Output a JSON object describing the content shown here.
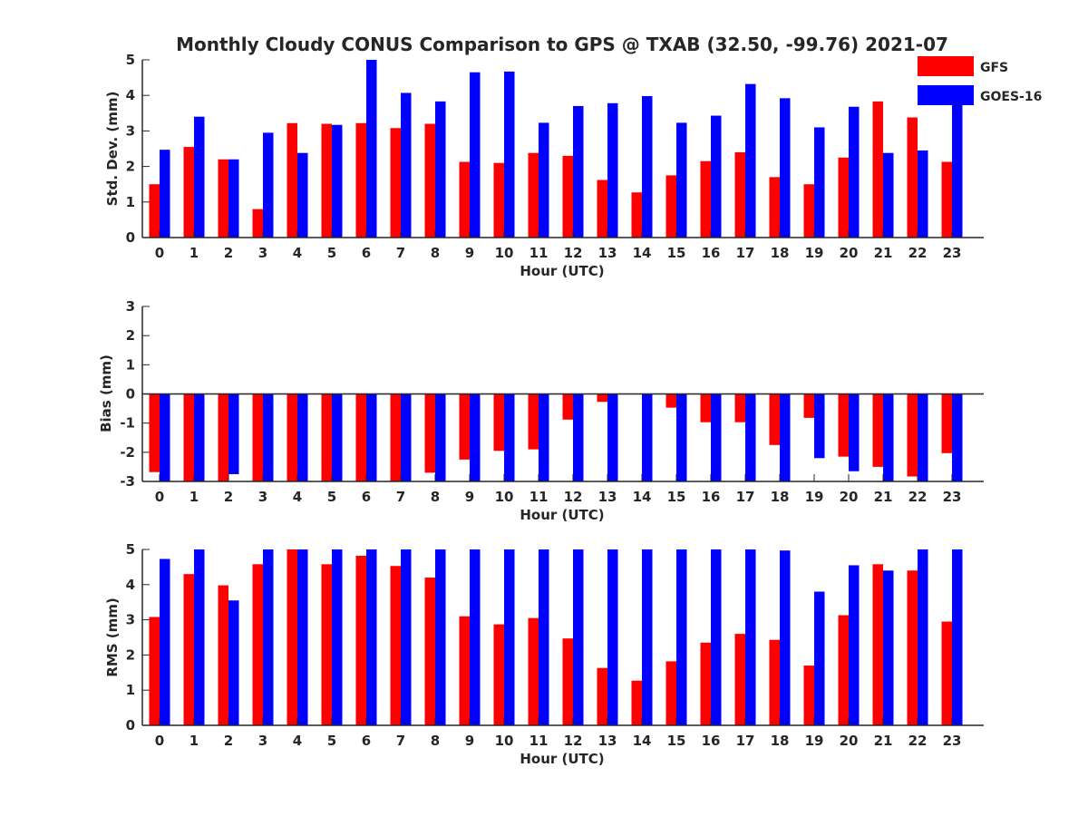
{
  "title": "Monthly Cloudy CONUS Comparison to GPS @ TXAB (32.50, -99.76) 2021-07",
  "legend": {
    "placement": "top-right",
    "items": [
      {
        "name": "GFS",
        "color": "#ff0000"
      },
      {
        "name": "GOES-16",
        "color": "#0000ff"
      }
    ]
  },
  "chart_data": [
    {
      "type": "bar",
      "xlabel": "Hour (UTC)",
      "ylabel": "Std. Dev. (mm)",
      "ylim": [
        0,
        5
      ],
      "yticks": [
        0,
        1,
        2,
        3,
        4,
        5
      ],
      "categories": [
        "0",
        "1",
        "2",
        "3",
        "4",
        "5",
        "6",
        "7",
        "8",
        "9",
        "10",
        "11",
        "12",
        "13",
        "14",
        "15",
        "16",
        "17",
        "18",
        "19",
        "20",
        "21",
        "22",
        "23"
      ],
      "series": [
        {
          "name": "GFS",
          "color": "#ff0000",
          "values": [
            1.5,
            2.55,
            2.2,
            0.8,
            3.22,
            3.2,
            3.22,
            3.08,
            3.2,
            2.13,
            2.1,
            2.38,
            2.3,
            1.62,
            1.27,
            1.75,
            2.15,
            2.4,
            1.7,
            1.5,
            2.25,
            3.83,
            3.38,
            2.13
          ]
        },
        {
          "name": "GOES-16",
          "color": "#0000ff",
          "values": [
            2.47,
            3.4,
            2.2,
            2.95,
            2.38,
            3.17,
            5.0,
            4.07,
            3.83,
            4.65,
            4.67,
            3.23,
            3.7,
            3.78,
            3.98,
            3.23,
            3.43,
            4.32,
            3.92,
            3.1,
            3.68,
            2.38,
            2.45,
            3.8
          ]
        }
      ]
    },
    {
      "type": "bar",
      "xlabel": "Hour (UTC)",
      "ylabel": "Bias (mm)",
      "ylim": [
        -3,
        3
      ],
      "yticks": [
        -3,
        -2,
        -1,
        0,
        1,
        2,
        3
      ],
      "categories": [
        "0",
        "1",
        "2",
        "3",
        "4",
        "5",
        "6",
        "7",
        "8",
        "9",
        "10",
        "11",
        "12",
        "13",
        "14",
        "15",
        "16",
        "17",
        "18",
        "19",
        "20",
        "21",
        "22",
        "23"
      ],
      "series": [
        {
          "name": "GFS",
          "color": "#ff0000",
          "values": [
            -2.68,
            -3.0,
            -3.0,
            -3.0,
            -3.0,
            -3.0,
            -3.0,
            -3.0,
            -2.7,
            -2.25,
            -1.95,
            -1.9,
            -0.88,
            -0.27,
            0.0,
            -0.47,
            -0.97,
            -0.97,
            -1.75,
            -0.82,
            -2.15,
            -2.5,
            -2.83,
            -2.03
          ]
        },
        {
          "name": "GOES-16",
          "color": "#0000ff",
          "values": [
            -3.0,
            -3.0,
            -2.75,
            -3.0,
            -3.0,
            -3.0,
            -3.0,
            -3.0,
            -3.0,
            -3.0,
            -3.0,
            -3.0,
            -3.0,
            -3.0,
            -3.0,
            -3.0,
            -3.0,
            -3.0,
            -3.0,
            -2.2,
            -2.65,
            -3.0,
            -3.0,
            -3.0
          ]
        }
      ]
    },
    {
      "type": "bar",
      "xlabel": "Hour (UTC)",
      "ylabel": "RMS (mm)",
      "ylim": [
        0,
        5
      ],
      "yticks": [
        0,
        1,
        2,
        3,
        4,
        5
      ],
      "categories": [
        "0",
        "1",
        "2",
        "3",
        "4",
        "5",
        "6",
        "7",
        "8",
        "9",
        "10",
        "11",
        "12",
        "13",
        "14",
        "15",
        "16",
        "17",
        "18",
        "19",
        "20",
        "21",
        "22",
        "23"
      ],
      "series": [
        {
          "name": "GFS",
          "color": "#ff0000",
          "values": [
            3.08,
            4.3,
            3.98,
            4.58,
            5.0,
            4.58,
            4.82,
            4.53,
            4.2,
            3.1,
            2.87,
            3.05,
            2.47,
            1.63,
            1.27,
            1.82,
            2.35,
            2.6,
            2.43,
            1.7,
            3.13,
            4.58,
            4.4,
            2.95
          ]
        },
        {
          "name": "GOES-16",
          "color": "#0000ff",
          "values": [
            4.73,
            5.0,
            3.55,
            5.0,
            5.0,
            5.0,
            5.0,
            5.0,
            5.0,
            5.0,
            5.0,
            5.0,
            5.0,
            5.0,
            5.0,
            5.0,
            5.0,
            5.0,
            4.97,
            3.8,
            4.55,
            4.4,
            5.0,
            5.0
          ]
        }
      ]
    }
  ]
}
